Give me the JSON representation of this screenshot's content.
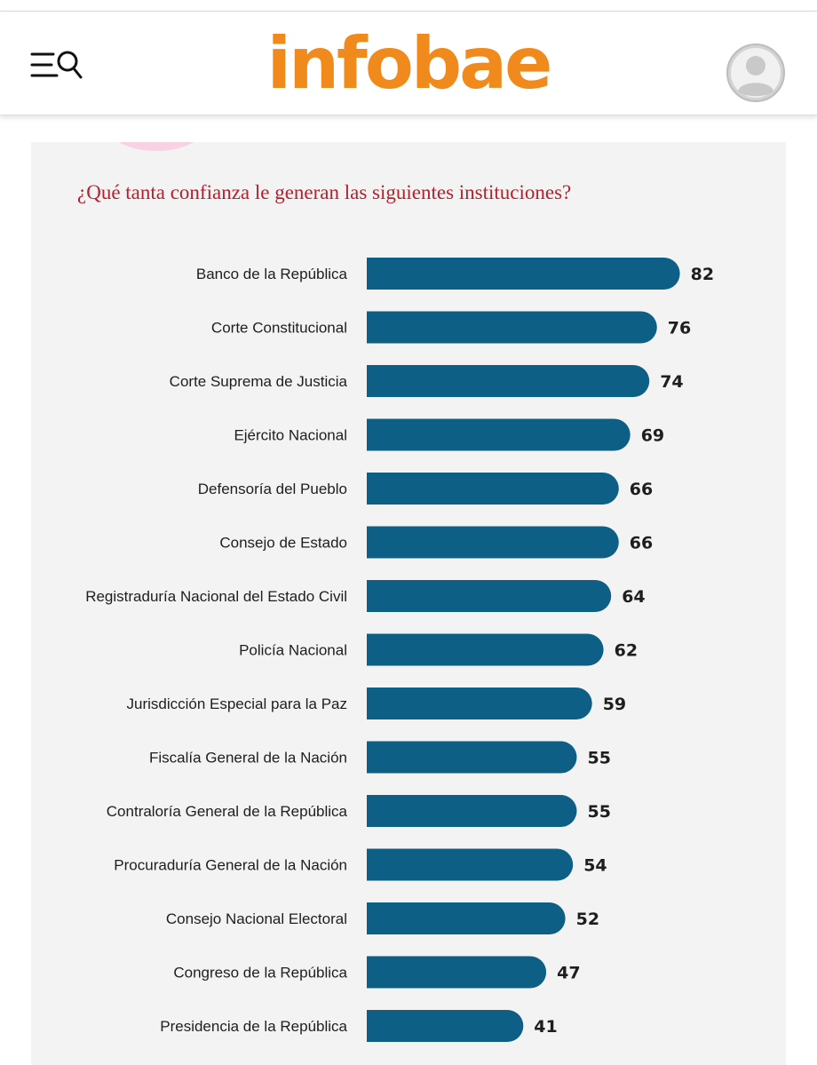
{
  "header": {
    "logo": "infobae",
    "menu_icon": "menu-search-icon",
    "avatar_icon": "user-avatar-icon"
  },
  "colors": {
    "brand": "#f08a1c",
    "bar": "#0d5f86",
    "title": "#b5202e"
  },
  "chart_data": {
    "type": "bar",
    "orientation": "horizontal",
    "title": "¿Qué tanta confianza le generan las siguientes instituciones?",
    "xlabel": "",
    "ylabel": "",
    "xlim": [
      0,
      100
    ],
    "categories": [
      "Banco de la República",
      "Corte Constitucional",
      "Corte Suprema de Justicia",
      "Ejército Nacional",
      "Defensoría del Pueblo",
      "Consejo de Estado",
      "Registraduría Nacional del Estado Civil",
      "Policía Nacional",
      "Jurisdicción Especial para la Paz",
      "Fiscalía General de la Nación",
      "Contraloría General de la República",
      "Procuraduría General de la Nación",
      "Consejo Nacional Electoral",
      "Congreso de la República",
      "Presidencia de la República"
    ],
    "values": [
      82,
      76,
      74,
      69,
      66,
      66,
      64,
      62,
      59,
      55,
      55,
      54,
      52,
      47,
      41
    ]
  }
}
